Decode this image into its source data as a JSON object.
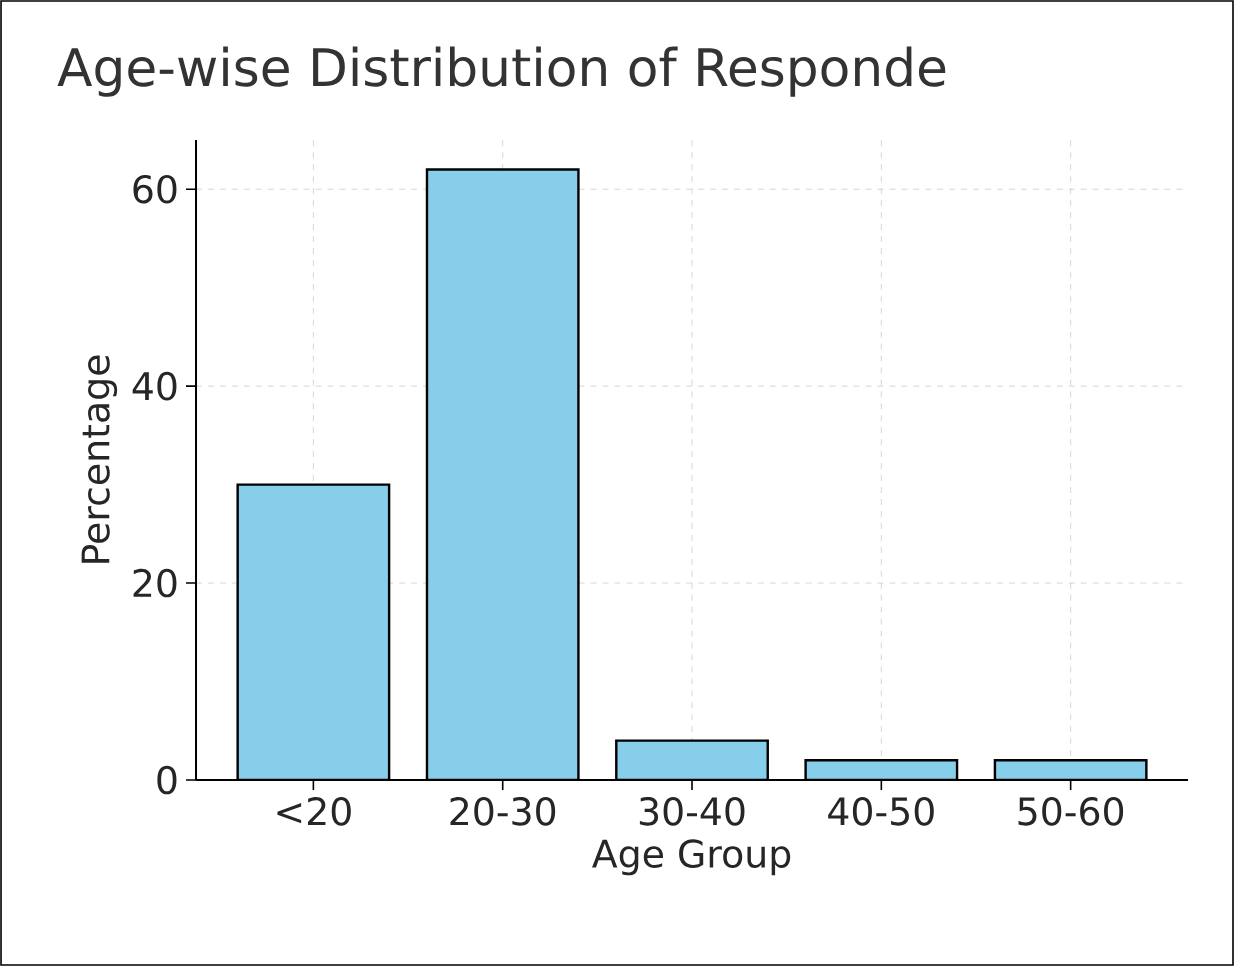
{
  "chart_data": {
    "type": "bar",
    "title": "Age-wise Distribution of Responde",
    "xlabel": "Age Group",
    "ylabel": "Percentage",
    "categories": [
      "<20",
      "20-30",
      "30-40",
      "40-50",
      "50-60"
    ],
    "values": [
      30,
      62,
      4,
      2,
      2
    ],
    "color": "#87ceeb",
    "ylim": [
      0,
      65
    ],
    "yticks": [
      0,
      20,
      40,
      60
    ],
    "grid": true
  }
}
